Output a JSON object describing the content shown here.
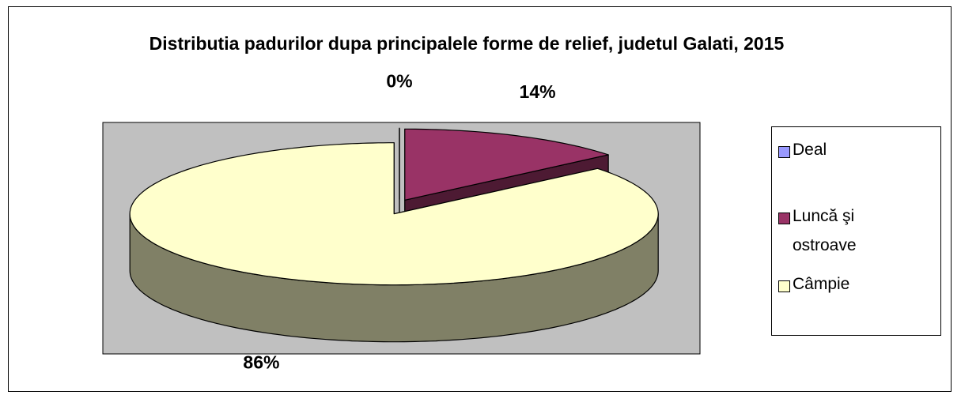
{
  "chart_data": {
    "type": "pie3d",
    "title": "Distributia padurilor dupa principalele forme de relief, judetul Galati, 2015",
    "categories": [
      "Deal",
      "Luncă şi ostroave",
      "Câmpie"
    ],
    "values": [
      0,
      14,
      86
    ],
    "value_labels": [
      "0%",
      "14%",
      "86%"
    ],
    "colors": [
      "#9999ff",
      "#993366",
      "#ffffcc"
    ],
    "side_colors": [
      "#4d4d80",
      "#4d1a33",
      "#808066"
    ],
    "legend": "right"
  }
}
